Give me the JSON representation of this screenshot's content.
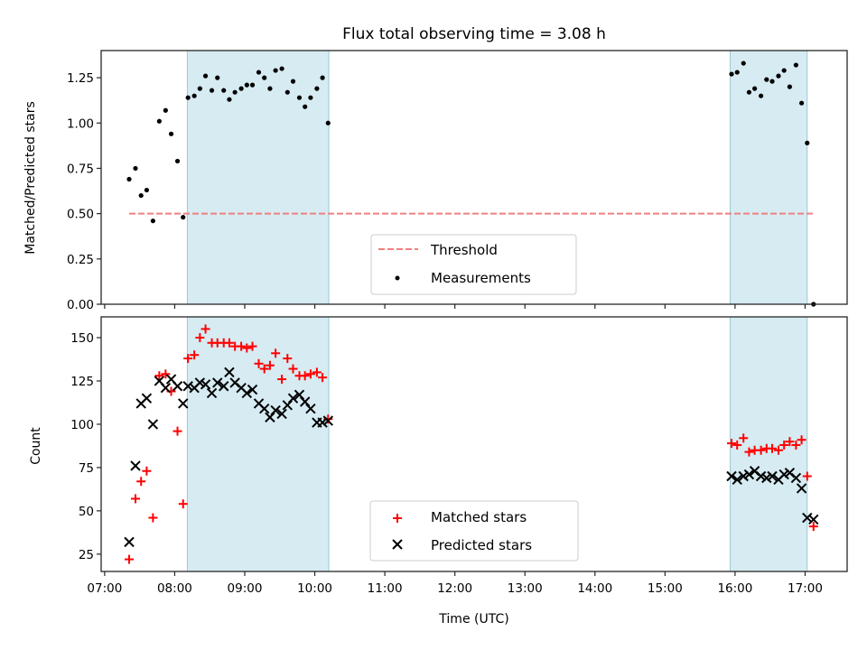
{
  "chart_data": [
    {
      "type": "scatter",
      "title": "Flux total observing time = 3.08 h",
      "xlabel": "",
      "ylabel": "Matched/Predicted stars",
      "ylim": [
        0,
        1.4
      ],
      "yticks": [
        "0.00",
        "0.25",
        "0.50",
        "0.75",
        "1.00",
        "1.25"
      ],
      "ytick_values": [
        0,
        0.25,
        0.5,
        0.75,
        1.0,
        1.25
      ],
      "xlim_hours": [
        6.95,
        17.6
      ],
      "grid": false,
      "legend_position": "lower-center",
      "shaded_intervals_hours": [
        [
          8.18,
          10.2
        ],
        [
          15.93,
          17.03
        ]
      ],
      "shade_color": "#add8e6",
      "threshold": {
        "name": "Threshold",
        "value": 0.5,
        "x_range_hours": [
          7.35,
          17.12
        ],
        "color": "#f08080",
        "style": "dashed"
      },
      "series": [
        {
          "name": "Measurements",
          "marker": "dot",
          "color": "#000000",
          "x_hours": [
            7.35,
            7.44,
            7.52,
            7.6,
            7.69,
            7.78,
            7.87,
            7.95,
            8.04,
            8.12,
            8.19,
            8.28,
            8.36,
            8.44,
            8.53,
            8.61,
            8.7,
            8.78,
            8.86,
            8.95,
            9.03,
            9.11,
            9.2,
            9.28,
            9.36,
            9.44,
            9.53,
            9.61,
            9.69,
            9.78,
            9.86,
            9.94,
            10.03,
            10.11,
            10.19,
            15.95,
            16.03,
            16.12,
            16.2,
            16.28,
            16.37,
            16.45,
            16.53,
            16.62,
            16.7,
            16.78,
            16.87,
            16.95,
            17.03,
            17.12
          ],
          "values": [
            0.69,
            0.75,
            0.6,
            0.63,
            0.46,
            1.01,
            1.07,
            0.94,
            0.79,
            0.48,
            1.14,
            1.15,
            1.19,
            1.26,
            1.18,
            1.25,
            1.18,
            1.13,
            1.17,
            1.19,
            1.21,
            1.21,
            1.28,
            1.25,
            1.19,
            1.29,
            1.3,
            1.17,
            1.23,
            1.14,
            1.09,
            1.14,
            1.19,
            1.25,
            1.0,
            1.27,
            1.28,
            1.33,
            1.17,
            1.19,
            1.15,
            1.24,
            1.23,
            1.26,
            1.29,
            1.2,
            1.32,
            1.11,
            0.89,
            0.0
          ]
        }
      ]
    },
    {
      "type": "scatter",
      "title": "",
      "xlabel": "Time (UTC)",
      "ylabel": "Count",
      "ylim": [
        15,
        162
      ],
      "yticks": [
        "25",
        "50",
        "75",
        "100",
        "125",
        "150"
      ],
      "ytick_values": [
        25,
        50,
        75,
        100,
        125,
        150
      ],
      "xticks": [
        "07:00",
        "08:00",
        "09:00",
        "10:00",
        "11:00",
        "12:00",
        "13:00",
        "14:00",
        "15:00",
        "16:00",
        "17:00"
      ],
      "xtick_values_hours": [
        7,
        8,
        9,
        10,
        11,
        12,
        13,
        14,
        15,
        16,
        17
      ],
      "xlim_hours": [
        6.95,
        17.6
      ],
      "grid": false,
      "legend_position": "lower-center",
      "shaded_intervals_hours": [
        [
          8.18,
          10.2
        ],
        [
          15.93,
          17.03
        ]
      ],
      "shade_color": "#add8e6",
      "series": [
        {
          "name": "Matched stars",
          "marker": "plus",
          "color": "#ff0000",
          "x_hours": [
            7.35,
            7.44,
            7.52,
            7.6,
            7.69,
            7.78,
            7.87,
            7.95,
            8.04,
            8.12,
            8.19,
            8.28,
            8.36,
            8.44,
            8.53,
            8.61,
            8.7,
            8.78,
            8.86,
            8.95,
            9.03,
            9.11,
            9.2,
            9.28,
            9.36,
            9.44,
            9.53,
            9.61,
            9.69,
            9.78,
            9.86,
            9.94,
            10.03,
            10.11,
            10.19,
            15.95,
            16.03,
            16.12,
            16.2,
            16.28,
            16.37,
            16.45,
            16.53,
            16.62,
            16.7,
            16.78,
            16.87,
            16.95,
            17.03,
            17.12
          ],
          "values": [
            22,
            57,
            67,
            73,
            46,
            128,
            129,
            119,
            96,
            54,
            138,
            140,
            150,
            155,
            147,
            147,
            147,
            147,
            145,
            145,
            144,
            145,
            135,
            132,
            134,
            141,
            126,
            138,
            132,
            128,
            128,
            129,
            130,
            127,
            103,
            89,
            88,
            92,
            84,
            85,
            85,
            86,
            86,
            85,
            88,
            90,
            88,
            91,
            70,
            41
          ]
        },
        {
          "name": "Predicted stars",
          "marker": "x",
          "color": "#000000",
          "x_hours": [
            7.35,
            7.44,
            7.52,
            7.6,
            7.69,
            7.78,
            7.87,
            7.95,
            8.04,
            8.12,
            8.19,
            8.28,
            8.36,
            8.44,
            8.53,
            8.61,
            8.7,
            8.78,
            8.86,
            8.95,
            9.03,
            9.11,
            9.2,
            9.28,
            9.36,
            9.44,
            9.53,
            9.61,
            9.69,
            9.78,
            9.86,
            9.94,
            10.03,
            10.11,
            10.19,
            15.95,
            16.03,
            16.12,
            16.2,
            16.28,
            16.37,
            16.45,
            16.53,
            16.62,
            16.7,
            16.78,
            16.87,
            16.95,
            17.03,
            17.12
          ],
          "values": [
            32,
            76,
            112,
            115,
            100,
            125,
            121,
            126,
            122,
            112,
            122,
            121,
            124,
            123,
            118,
            124,
            122,
            130,
            124,
            121,
            118,
            120,
            112,
            109,
            104,
            108,
            106,
            111,
            115,
            117,
            113,
            109,
            101,
            101,
            102,
            70,
            68,
            70,
            71,
            73,
            70,
            69,
            70,
            68,
            71,
            72,
            69,
            63,
            46,
            45
          ]
        }
      ]
    }
  ],
  "legends": {
    "top": [
      "Threshold",
      "Measurements"
    ],
    "bottom": [
      "Matched stars",
      "Predicted stars"
    ]
  }
}
